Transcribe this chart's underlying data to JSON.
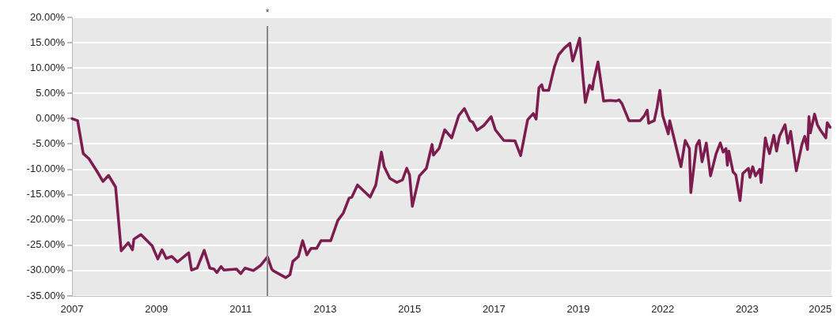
{
  "chart_data": {
    "type": "line",
    "categories": [
      "2007",
      null,
      null,
      null,
      null,
      null,
      null,
      null,
      null,
      null,
      null,
      null,
      null,
      null,
      null,
      null,
      null,
      null,
      null,
      null,
      null,
      null,
      null,
      null,
      null,
      null,
      null,
      null,
      null,
      null,
      null,
      null,
      null,
      null,
      null,
      null,
      null,
      null,
      null,
      null,
      null,
      null,
      null,
      null,
      null,
      null,
      null,
      null,
      null,
      null,
      null,
      null,
      null,
      null,
      null,
      null,
      null,
      null,
      null,
      null,
      "2009",
      null,
      null,
      null,
      null,
      null,
      null,
      null,
      null,
      null,
      null,
      null,
      null,
      null,
      null,
      null,
      null,
      null,
      null,
      null,
      null,
      null,
      null,
      null,
      null,
      null,
      null,
      null,
      null,
      null,
      null,
      null,
      null,
      null,
      null,
      null,
      null,
      null,
      null,
      null,
      null,
      null,
      null,
      null,
      null,
      null,
      null,
      null,
      null,
      null,
      null,
      null,
      null,
      null,
      null,
      null,
      null,
      null,
      null,
      null,
      "2011",
      null,
      null,
      null,
      null,
      null,
      null,
      null,
      null,
      null,
      null,
      null,
      null,
      null,
      null,
      null,
      null,
      null,
      null,
      null,
      null,
      null,
      null,
      null,
      null,
      null,
      null,
      null,
      null,
      null,
      null,
      null,
      null,
      null,
      null,
      null,
      null,
      null,
      null,
      null,
      null,
      null,
      null,
      null,
      null,
      null,
      null,
      null,
      null,
      null,
      null,
      null,
      null,
      null,
      null,
      null,
      null,
      null,
      null,
      null,
      "2013",
      null,
      null,
      null,
      null,
      null,
      null,
      null,
      null,
      null,
      null,
      null,
      null,
      null,
      null,
      null,
      null,
      null,
      null,
      null,
      null,
      null,
      null,
      null,
      null,
      null,
      null,
      null,
      null,
      null,
      null,
      null,
      null,
      null,
      null,
      null,
      null,
      null,
      null,
      null,
      null,
      null,
      null,
      null,
      null,
      null,
      null,
      null,
      null,
      null,
      null,
      null,
      null,
      null,
      null,
      null,
      null,
      null,
      null,
      null,
      "2015",
      null,
      null,
      null,
      null,
      null,
      null,
      null,
      null,
      null,
      null,
      null,
      null,
      null,
      null,
      null,
      null,
      null,
      null,
      null,
      null,
      null,
      null,
      null,
      null,
      null,
      null,
      null,
      null,
      null,
      null,
      null,
      null,
      null,
      null,
      null,
      null,
      null,
      null,
      null,
      null,
      null,
      null,
      null,
      null,
      null,
      null,
      null,
      null,
      null,
      null,
      null,
      null,
      null,
      null,
      null,
      null,
      null,
      null,
      null,
      "2017",
      null,
      null,
      null,
      null,
      null,
      null,
      null,
      null,
      null,
      null,
      null,
      null,
      null,
      null,
      null,
      null,
      null,
      null,
      null,
      null,
      null,
      null,
      null,
      null,
      null,
      null,
      null,
      null,
      null,
      null,
      null,
      null,
      null,
      null,
      null,
      null,
      null,
      null,
      null,
      null,
      null,
      null,
      null,
      null,
      null,
      null,
      null,
      null,
      null,
      null,
      null,
      null,
      null,
      null,
      null,
      null,
      null,
      null,
      null,
      "2019",
      null,
      null,
      null,
      null,
      null,
      null,
      null,
      null,
      null,
      null,
      null,
      null,
      null,
      null,
      null,
      null,
      null,
      null,
      null,
      null,
      null,
      null,
      null,
      null,
      null,
      null,
      null,
      null,
      null,
      null,
      null,
      null,
      null,
      null,
      null,
      null,
      null,
      null,
      null,
      null,
      null,
      null,
      null,
      null,
      null,
      null,
      null,
      null,
      null,
      null,
      null,
      null,
      null,
      null,
      null,
      null,
      null,
      null,
      null,
      "2022",
      null,
      null,
      null,
      null,
      null,
      null,
      null,
      null,
      null,
      null,
      null,
      null,
      null,
      null,
      null,
      null,
      null,
      null,
      null,
      null,
      null,
      null,
      null,
      null,
      null,
      null,
      null,
      null,
      null,
      null,
      null,
      null,
      null,
      null,
      null,
      null,
      null,
      null,
      null,
      null,
      null,
      null,
      null,
      null,
      null,
      null,
      null,
      null,
      null,
      null,
      null,
      null,
      null,
      null,
      null,
      null,
      null,
      null,
      null,
      "2023",
      null,
      null,
      null,
      null,
      null,
      null,
      null,
      null,
      null,
      null,
      null,
      null,
      null,
      null,
      null,
      null,
      null,
      null,
      null,
      null,
      null,
      null,
      null,
      null,
      null,
      null,
      null,
      null,
      null,
      null,
      null,
      null,
      null,
      null,
      null,
      null,
      null,
      null,
      null,
      null,
      null,
      null,
      null,
      null,
      null,
      null,
      null,
      null,
      null,
      null,
      null,
      "2025",
      null,
      null,
      null,
      null,
      null,
      null,
      null,
      null
    ],
    "series": [
      {
        "color": "#7d1d4f",
        "values": [
          0,
          null,
          null,
          null,
          -0.4,
          null,
          null,
          null,
          -6.9,
          null,
          null,
          null,
          -7.9,
          null,
          null,
          null,
          null,
          null,
          -10.5,
          null,
          null,
          null,
          -12.4,
          null,
          null,
          null,
          -11.2,
          null,
          null,
          null,
          null,
          -13.5,
          null,
          null,
          null,
          -26.1,
          null,
          null,
          null,
          null,
          -24.5,
          null,
          null,
          -25.9,
          -23.8,
          null,
          null,
          null,
          null,
          -22.9,
          null,
          null,
          null,
          null,
          null,
          null,
          null,
          -25.1,
          null,
          null,
          null,
          -27.7,
          null,
          null,
          -25.9,
          null,
          null,
          -27.6,
          null,
          null,
          null,
          -27.2,
          null,
          null,
          null,
          -28.3,
          null,
          null,
          null,
          null,
          null,
          null,
          null,
          -26.5,
          null,
          -29.9,
          null,
          null,
          null,
          -29.5,
          null,
          null,
          null,
          null,
          -26.0,
          null,
          null,
          null,
          -29.5,
          null,
          null,
          -29.7,
          null,
          -30.4,
          null,
          null,
          -29.2,
          null,
          -29.9,
          null,
          null,
          null,
          null,
          null,
          null,
          null,
          null,
          -29.7,
          null,
          null,
          -30.6,
          null,
          null,
          -29.5,
          null,
          null,
          null,
          null,
          null,
          -30.0,
          null,
          null,
          null,
          null,
          -29.0,
          null,
          null,
          null,
          null,
          -27.3,
          null,
          null,
          -29.7,
          -30.0,
          null,
          null,
          null,
          null,
          null,
          null,
          null,
          null,
          -31.4,
          null,
          null,
          -30.8,
          null,
          -28.2,
          null,
          null,
          null,
          -27.2,
          null,
          null,
          -24.1,
          null,
          null,
          -26.9,
          null,
          null,
          -25.6,
          null,
          null,
          null,
          -25.6,
          null,
          null,
          -24.1,
          null,
          null,
          null,
          null,
          null,
          null,
          -24.1,
          null,
          null,
          null,
          null,
          -20.1,
          null,
          null,
          null,
          -18.6,
          null,
          null,
          null,
          -15.7,
          null,
          -15.5,
          null,
          null,
          null,
          -13.1,
          null,
          null,
          null,
          null,
          null,
          null,
          null,
          null,
          -15.5,
          null,
          null,
          null,
          -13.1,
          null,
          null,
          null,
          -6.6,
          null,
          -9.5,
          null,
          null,
          null,
          -11.8,
          null,
          null,
          null,
          null,
          -12.6,
          null,
          null,
          null,
          -12.1,
          null,
          null,
          -9.8,
          null,
          -11.1,
          null,
          -17.3,
          null,
          null,
          null,
          null,
          -11.3,
          null,
          null,
          null,
          null,
          -9.8,
          null,
          null,
          null,
          -5.1,
          -7.2,
          null,
          null,
          null,
          -5.9,
          null,
          null,
          null,
          -2.2,
          null,
          null,
          null,
          null,
          -3.8,
          null,
          null,
          null,
          null,
          0.6,
          null,
          null,
          null,
          2.0,
          null,
          null,
          null,
          -0.4,
          null,
          -0.7,
          null,
          null,
          -2.3,
          null,
          null,
          null,
          null,
          -1.3,
          null,
          null,
          null,
          null,
          0.4,
          null,
          null,
          -2.2,
          null,
          null,
          null,
          null,
          null,
          -4.3,
          null,
          null,
          null,
          null,
          null,
          null,
          null,
          -4.4,
          null,
          null,
          null,
          -7.3,
          null,
          null,
          null,
          null,
          -0.2,
          null,
          null,
          null,
          1.0,
          null,
          -0.1,
          null,
          6.1,
          null,
          6.7,
          5.6,
          null,
          null,
          null,
          5.6,
          null,
          null,
          null,
          10.2,
          null,
          null,
          12.6,
          null,
          null,
          null,
          13.9,
          null,
          null,
          null,
          14.9,
          null,
          11.4,
          null,
          13.1,
          null,
          null,
          15.9,
          null,
          9.2,
          null,
          3.2,
          null,
          null,
          6.6,
          null,
          5.8,
          7.6,
          null,
          null,
          11.2,
          null,
          null,
          null,
          3.5,
          null,
          null,
          null,
          null,
          3.6,
          null,
          null,
          null,
          3.5,
          null,
          3.7,
          null,
          3.0,
          null,
          null,
          null,
          null,
          -0.4,
          null,
          null,
          null,
          null,
          null,
          null,
          null,
          -0.4,
          null,
          null,
          0.6,
          null,
          1.7,
          -0.9,
          null,
          null,
          null,
          -0.4,
          null,
          2.2,
          null,
          5.6,
          null,
          0.6,
          null,
          null,
          null,
          -3.0,
          -0.4,
          null,
          null,
          -3.8,
          null,
          null,
          null,
          null,
          -9.5,
          null,
          null,
          -4.3,
          null,
          null,
          -5.9,
          -14.6,
          null,
          null,
          null,
          -5.3,
          null,
          -4.3,
          null,
          -8.5,
          null,
          null,
          -4.8,
          null,
          null,
          -11.3,
          null,
          null,
          null,
          -6.9,
          null,
          null,
          -4.8,
          null,
          -6.6,
          null,
          -5.9,
          -9.2,
          -6.4,
          null,
          null,
          -10.5,
          null,
          -11.1,
          null,
          null,
          -16.2,
          null,
          -10.8,
          null,
          null,
          null,
          -9.8,
          -11.6,
          null,
          -9.5,
          null,
          -11.3,
          null,
          null,
          -10.0,
          -12.6,
          null,
          null,
          -3.8,
          -5.1,
          null,
          -6.9,
          null,
          null,
          -3.3,
          null,
          -6.4,
          null,
          -3.5,
          null,
          null,
          null,
          -1.2,
          null,
          -4.8,
          null,
          -2.5,
          null,
          null,
          null,
          -10.3,
          null,
          null,
          null,
          -5.1,
          null,
          -3.5,
          null,
          -6.1,
          0.4,
          -2.8,
          null,
          null,
          0.9,
          null,
          -1.2,
          null,
          -2.2,
          null,
          null,
          null,
          -3.8,
          -0.8,
          null,
          -1.7,
          null
        ]
      }
    ],
    "ylim": [
      -35,
      20
    ],
    "yticks": [
      {
        "value": -35,
        "label": "-35.00%"
      },
      {
        "value": -30,
        "label": "-30.00%"
      },
      {
        "value": -25,
        "label": "-25.00%"
      },
      {
        "value": -20,
        "label": "-20.00%"
      },
      {
        "value": -15,
        "label": "-15.00%"
      },
      {
        "value": -10,
        "label": "-10.00%"
      },
      {
        "value": -5,
        "label": "-5.00%"
      },
      {
        "value": 0,
        "label": "0.00%"
      },
      {
        "value": 5,
        "label": "5.00%"
      },
      {
        "value": 10,
        "label": "10.00%"
      },
      {
        "value": 15,
        "label": "15.00%"
      },
      {
        "value": 20,
        "label": "20.00%"
      }
    ],
    "annotations": [
      "*"
    ],
    "grid": "y",
    "marker": "none",
    "line_style": "solid"
  }
}
